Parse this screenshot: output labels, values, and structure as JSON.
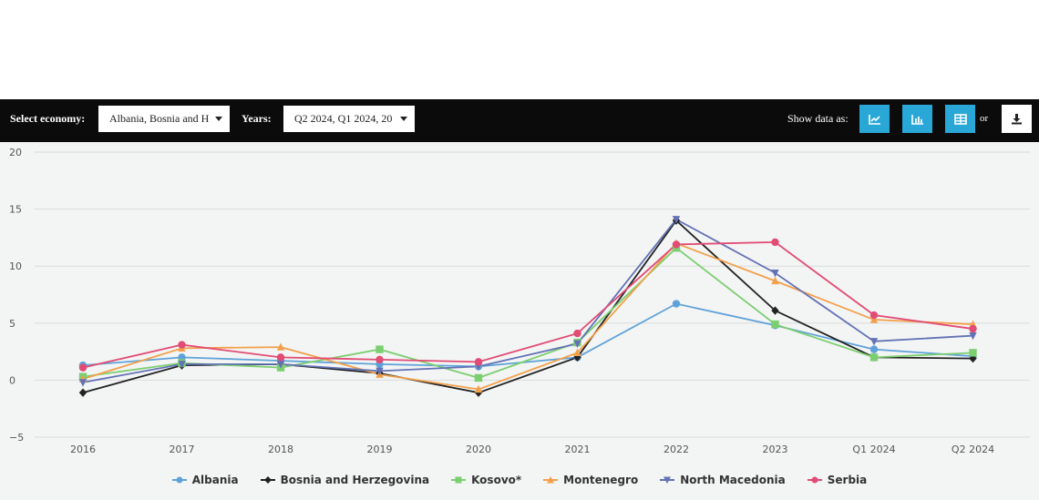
{
  "toolbar": {
    "select_economy_label": "Select economy:",
    "economy_value": "Albania, Bosnia and H",
    "years_label": "Years:",
    "years_value": "Q2 2024, Q1 2024, 20",
    "show_as_label": "Show data as:",
    "or_label": "or",
    "buttons": [
      {
        "name": "line-chart-icon"
      },
      {
        "name": "bar-chart-icon"
      },
      {
        "name": "table-icon"
      },
      {
        "name": "download-icon"
      }
    ]
  },
  "colors": {
    "toolbar_bg": "#0b0b0b",
    "accent": "#29a8d8",
    "plot_bg": "#f3f4f4"
  },
  "chart_data": {
    "type": "line",
    "categories": [
      "2016",
      "2017",
      "2018",
      "2019",
      "2020",
      "2021",
      "2022",
      "2023",
      "Q1 2024",
      "Q2 2024"
    ],
    "ylim": [
      -5,
      20
    ],
    "yticks": [
      -5,
      0,
      5,
      10,
      15,
      20
    ],
    "grid": true,
    "legend_position": "bottom",
    "series": [
      {
        "name": "Albania",
        "color": "#5fa2d9",
        "marker": "circle",
        "values": [
          1.3,
          2.0,
          1.7,
          1.4,
          1.2,
          2.0,
          6.7,
          4.8,
          2.7,
          2.1
        ]
      },
      {
        "name": "Bosnia and Herzegovina",
        "color": "#222222",
        "marker": "diamond",
        "values": [
          -1.1,
          1.3,
          1.4,
          0.6,
          -1.1,
          2.0,
          14.0,
          6.1,
          2.0,
          1.9
        ]
      },
      {
        "name": "Kosovo*",
        "color": "#7ccf70",
        "marker": "square",
        "values": [
          0.3,
          1.5,
          1.1,
          2.7,
          0.2,
          3.3,
          11.6,
          4.9,
          2.0,
          2.4
        ]
      },
      {
        "name": "Montenegro",
        "color": "#f2a04b",
        "marker": "triangle",
        "values": [
          0.1,
          2.8,
          2.9,
          0.5,
          -0.8,
          2.4,
          12.0,
          8.7,
          5.3,
          4.9
        ]
      },
      {
        "name": "North Macedonia",
        "color": "#6272b5",
        "marker": "triangle-down",
        "values": [
          -0.2,
          1.4,
          1.4,
          0.8,
          1.2,
          3.2,
          14.1,
          9.4,
          3.4,
          3.9
        ]
      },
      {
        "name": "Serbia",
        "color": "#e14b74",
        "marker": "circle",
        "values": [
          1.1,
          3.1,
          2.0,
          1.8,
          1.6,
          4.1,
          11.9,
          12.1,
          5.7,
          4.5
        ]
      }
    ]
  }
}
